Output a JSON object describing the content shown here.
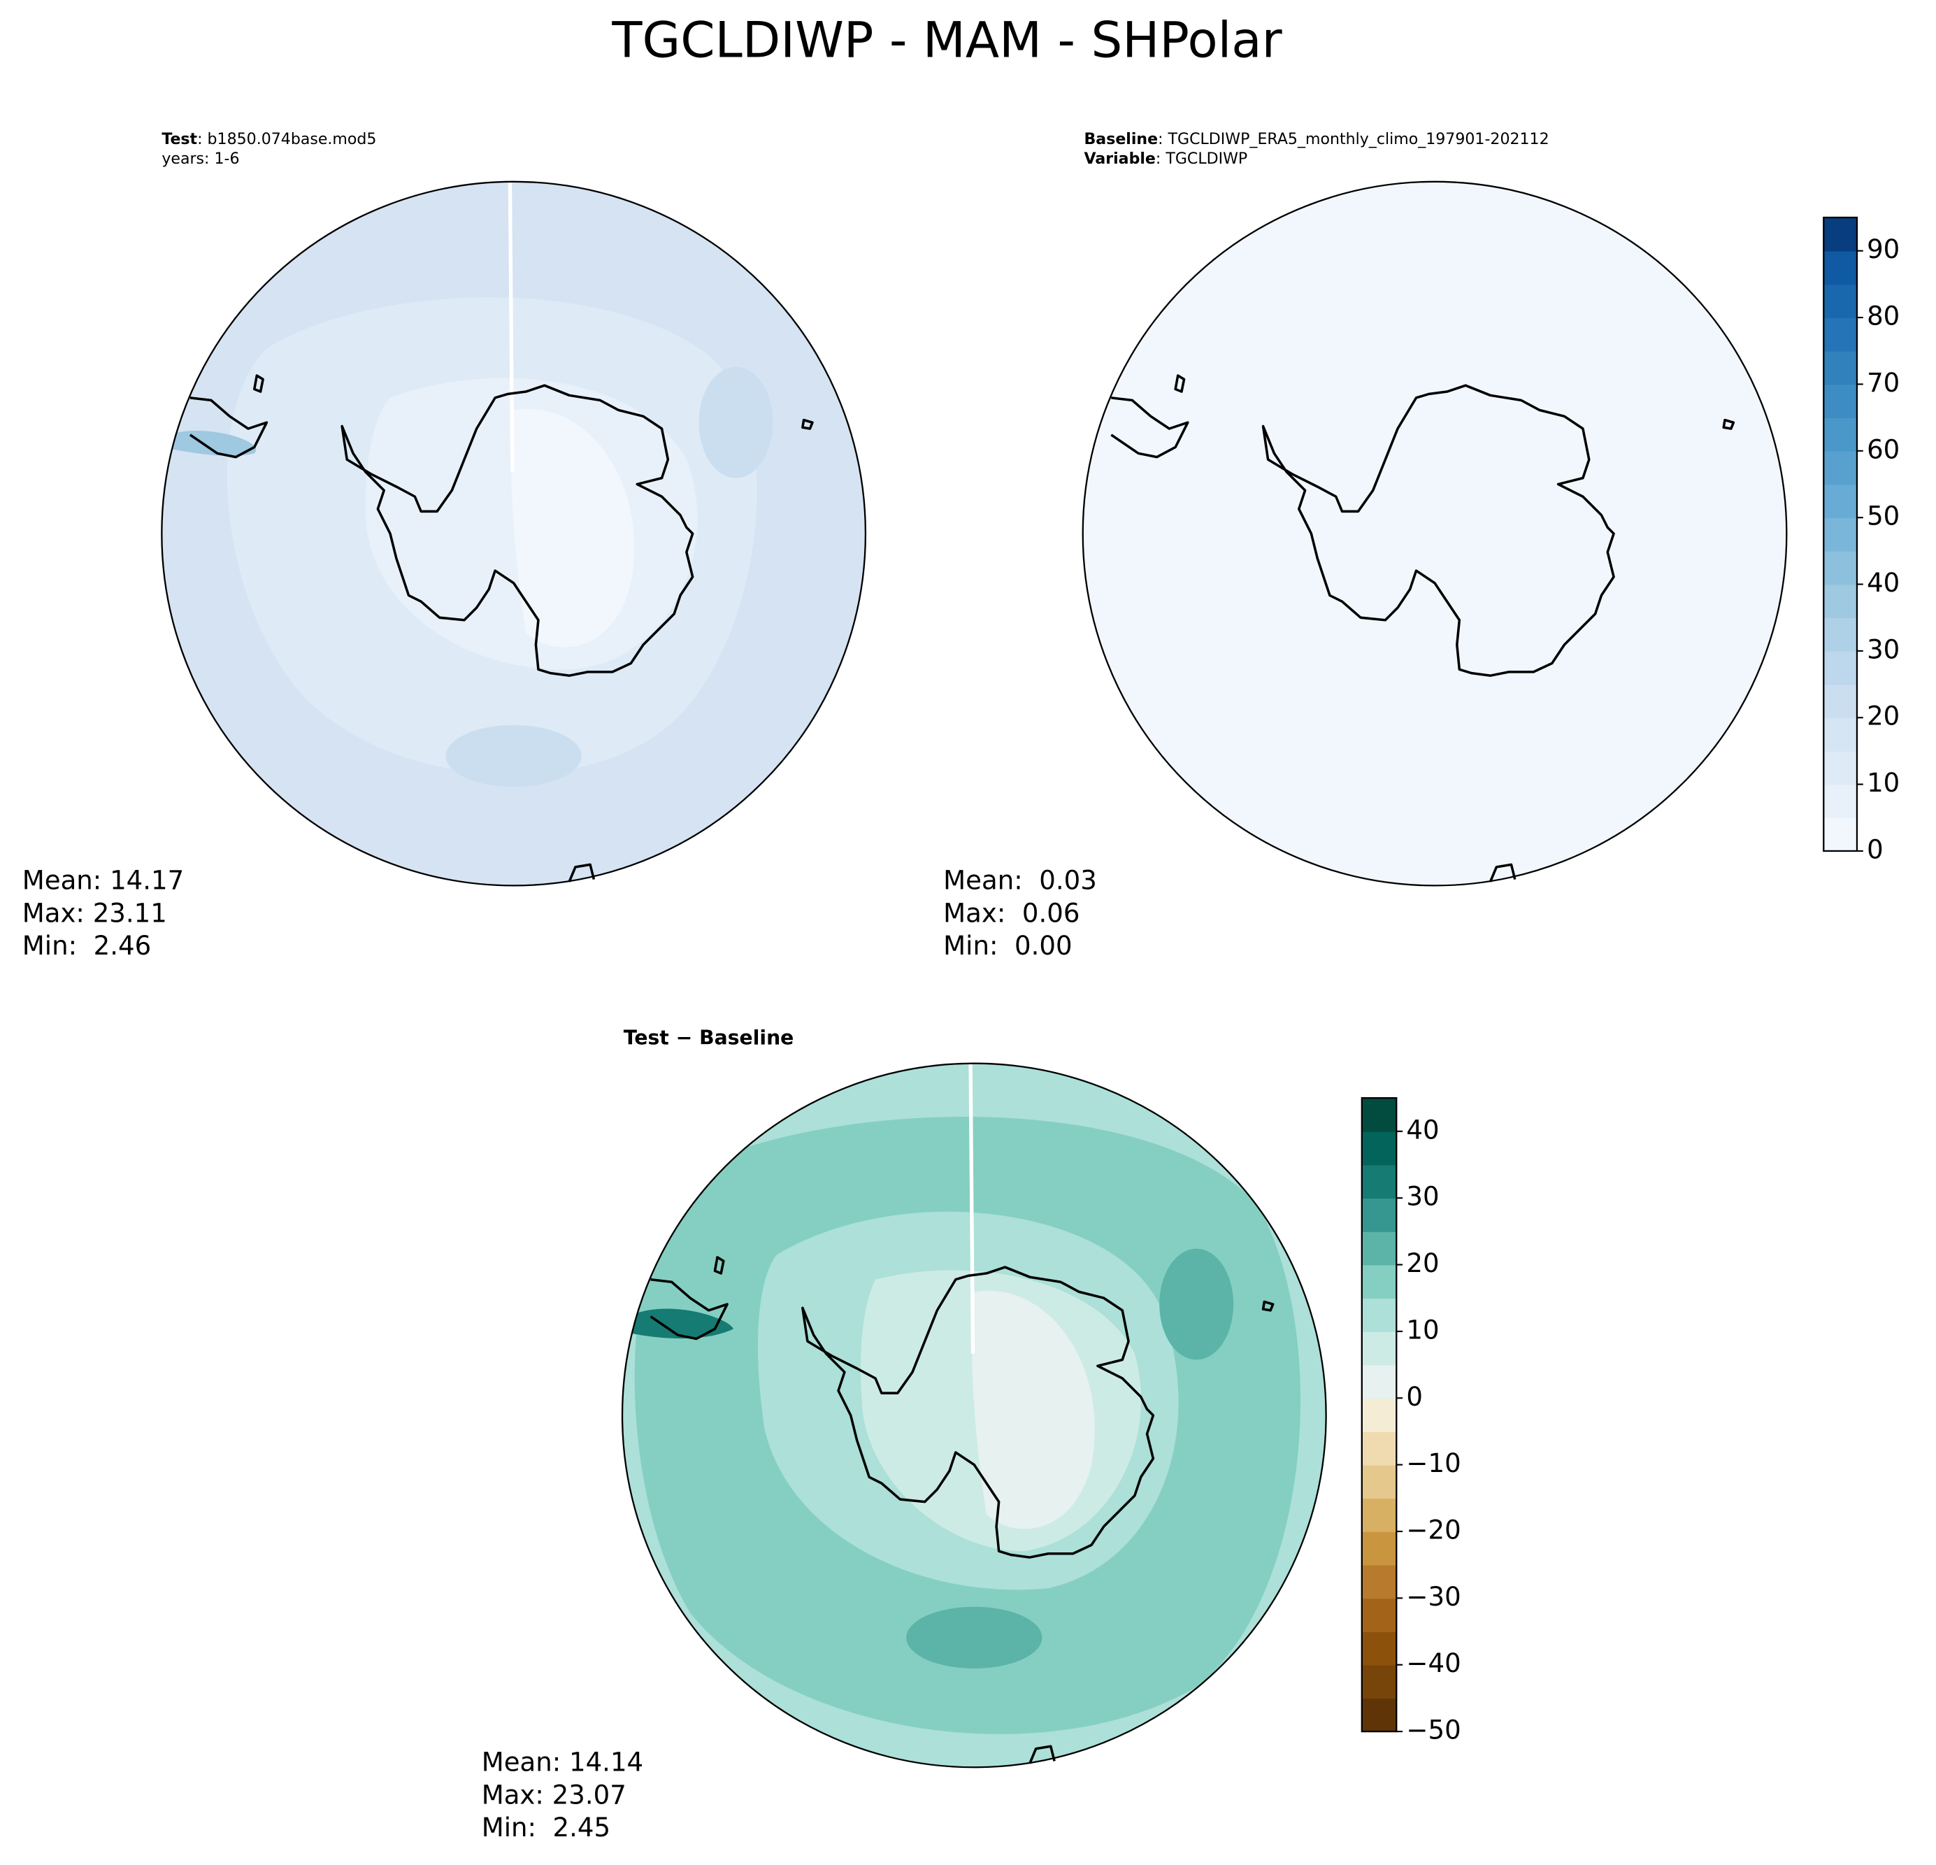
{
  "chart_data": {
    "type": "polar-map",
    "title": "TGCLDIWP - MAM - SHPolar",
    "panels": [
      {
        "header": [
          [
            {
              "text": "Test",
              "bold": true
            },
            {
              "text": ": b1850.074base.mod5"
            }
          ],
          [
            {
              "text": "years: 1-6"
            }
          ]
        ],
        "stats": [
          "Mean: 14.17",
          "Max: 23.11",
          "Min:  2.46"
        ]
      },
      {
        "header": [
          [
            {
              "text": "Baseline",
              "bold": true
            },
            {
              "text": ": TGCLDIWP_ERA5_monthly_climo_197901-202112"
            }
          ],
          [
            {
              "text": "Variable",
              "bold": true
            },
            {
              "text": ": TGCLDIWP"
            }
          ]
        ],
        "stats": [
          "Mean:  0.03",
          "Max:  0.06",
          "Min:  0.00"
        ]
      },
      {
        "header": [
          [
            {
              "text": "Test − Baseline",
              "bold": true
            }
          ]
        ],
        "stats": [
          "Mean: 14.14",
          "Max: 23.07",
          "Min:  2.45"
        ]
      }
    ],
    "colorbars": [
      {
        "ylim": [
          0,
          95
        ],
        "yticks": [
          0,
          10,
          20,
          30,
          40,
          50,
          60,
          70,
          80,
          90
        ],
        "colors": [
          "#f2f7fd",
          "#e8f1fa",
          "#deebf7",
          "#d5e5f4",
          "#cadef0",
          "#bdd7ec",
          "#afd1e7",
          "#9fc8e1",
          "#8dc0dd",
          "#7ab6d9",
          "#68acd5",
          "#58a1cf",
          "#4a97c9",
          "#3d8dc4",
          "#3181bd",
          "#2474b7",
          "#1967ad",
          "#0f5aa3",
          "#083d7f"
        ]
      },
      {
        "ylim": [
          -50,
          45
        ],
        "yticks": [
          {
            "value": -50,
            "label": "−50"
          },
          {
            "value": -40,
            "label": "−40"
          },
          {
            "value": -30,
            "label": "−30"
          },
          {
            "value": -20,
            "label": "−20"
          },
          {
            "value": -10,
            "label": "−10"
          },
          0,
          10,
          20,
          30,
          40
        ],
        "colors": [
          "#5f3508",
          "#774409",
          "#8c520b",
          "#a3641a",
          "#b87b2d",
          "#c9963f",
          "#d7b064",
          "#e5c98c",
          "#f0dbb0",
          "#f5ecd6",
          "#e7f1ef",
          "#cdebe5",
          "#ace0d8",
          "#85cfc2",
          "#5cb4a8",
          "#35978f",
          "#167b72",
          "#02645a",
          "#014c3f"
        ]
      }
    ]
  }
}
